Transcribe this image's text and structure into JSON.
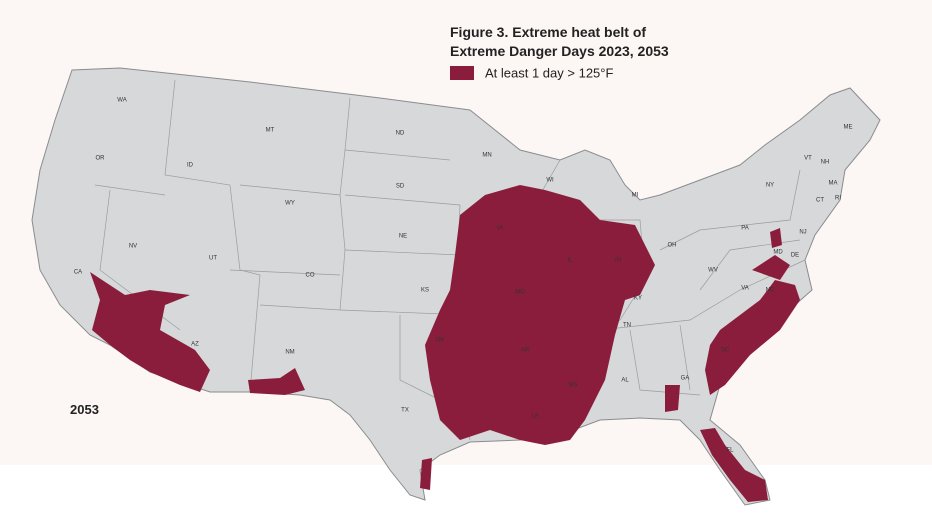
{
  "map": {
    "title_lines": [
      "Figure 3. Extreme heat belt of",
      "Extreme Danger Days 2023, 2053"
    ],
    "legend": {
      "label": "At least 1 day > 125°F",
      "color": "#8b1d3c"
    },
    "year_label": "2053",
    "state_labels": [
      "WA",
      "OR",
      "CA",
      "NV",
      "ID",
      "MT",
      "WY",
      "UT",
      "AZ",
      "NM",
      "CO",
      "ND",
      "SD",
      "NE",
      "KS",
      "TX",
      "MN",
      "IA",
      "MO",
      "AR",
      "LA",
      "OK",
      "WI",
      "IL",
      "IN",
      "MI",
      "OH",
      "KY",
      "TN",
      "MS",
      "AL",
      "GA",
      "SC",
      "NC",
      "VA",
      "WV",
      "PA",
      "NY",
      "VT",
      "NH",
      "ME",
      "MA",
      "CT",
      "RI",
      "NJ",
      "MD",
      "DE",
      "FL"
    ]
  }
}
